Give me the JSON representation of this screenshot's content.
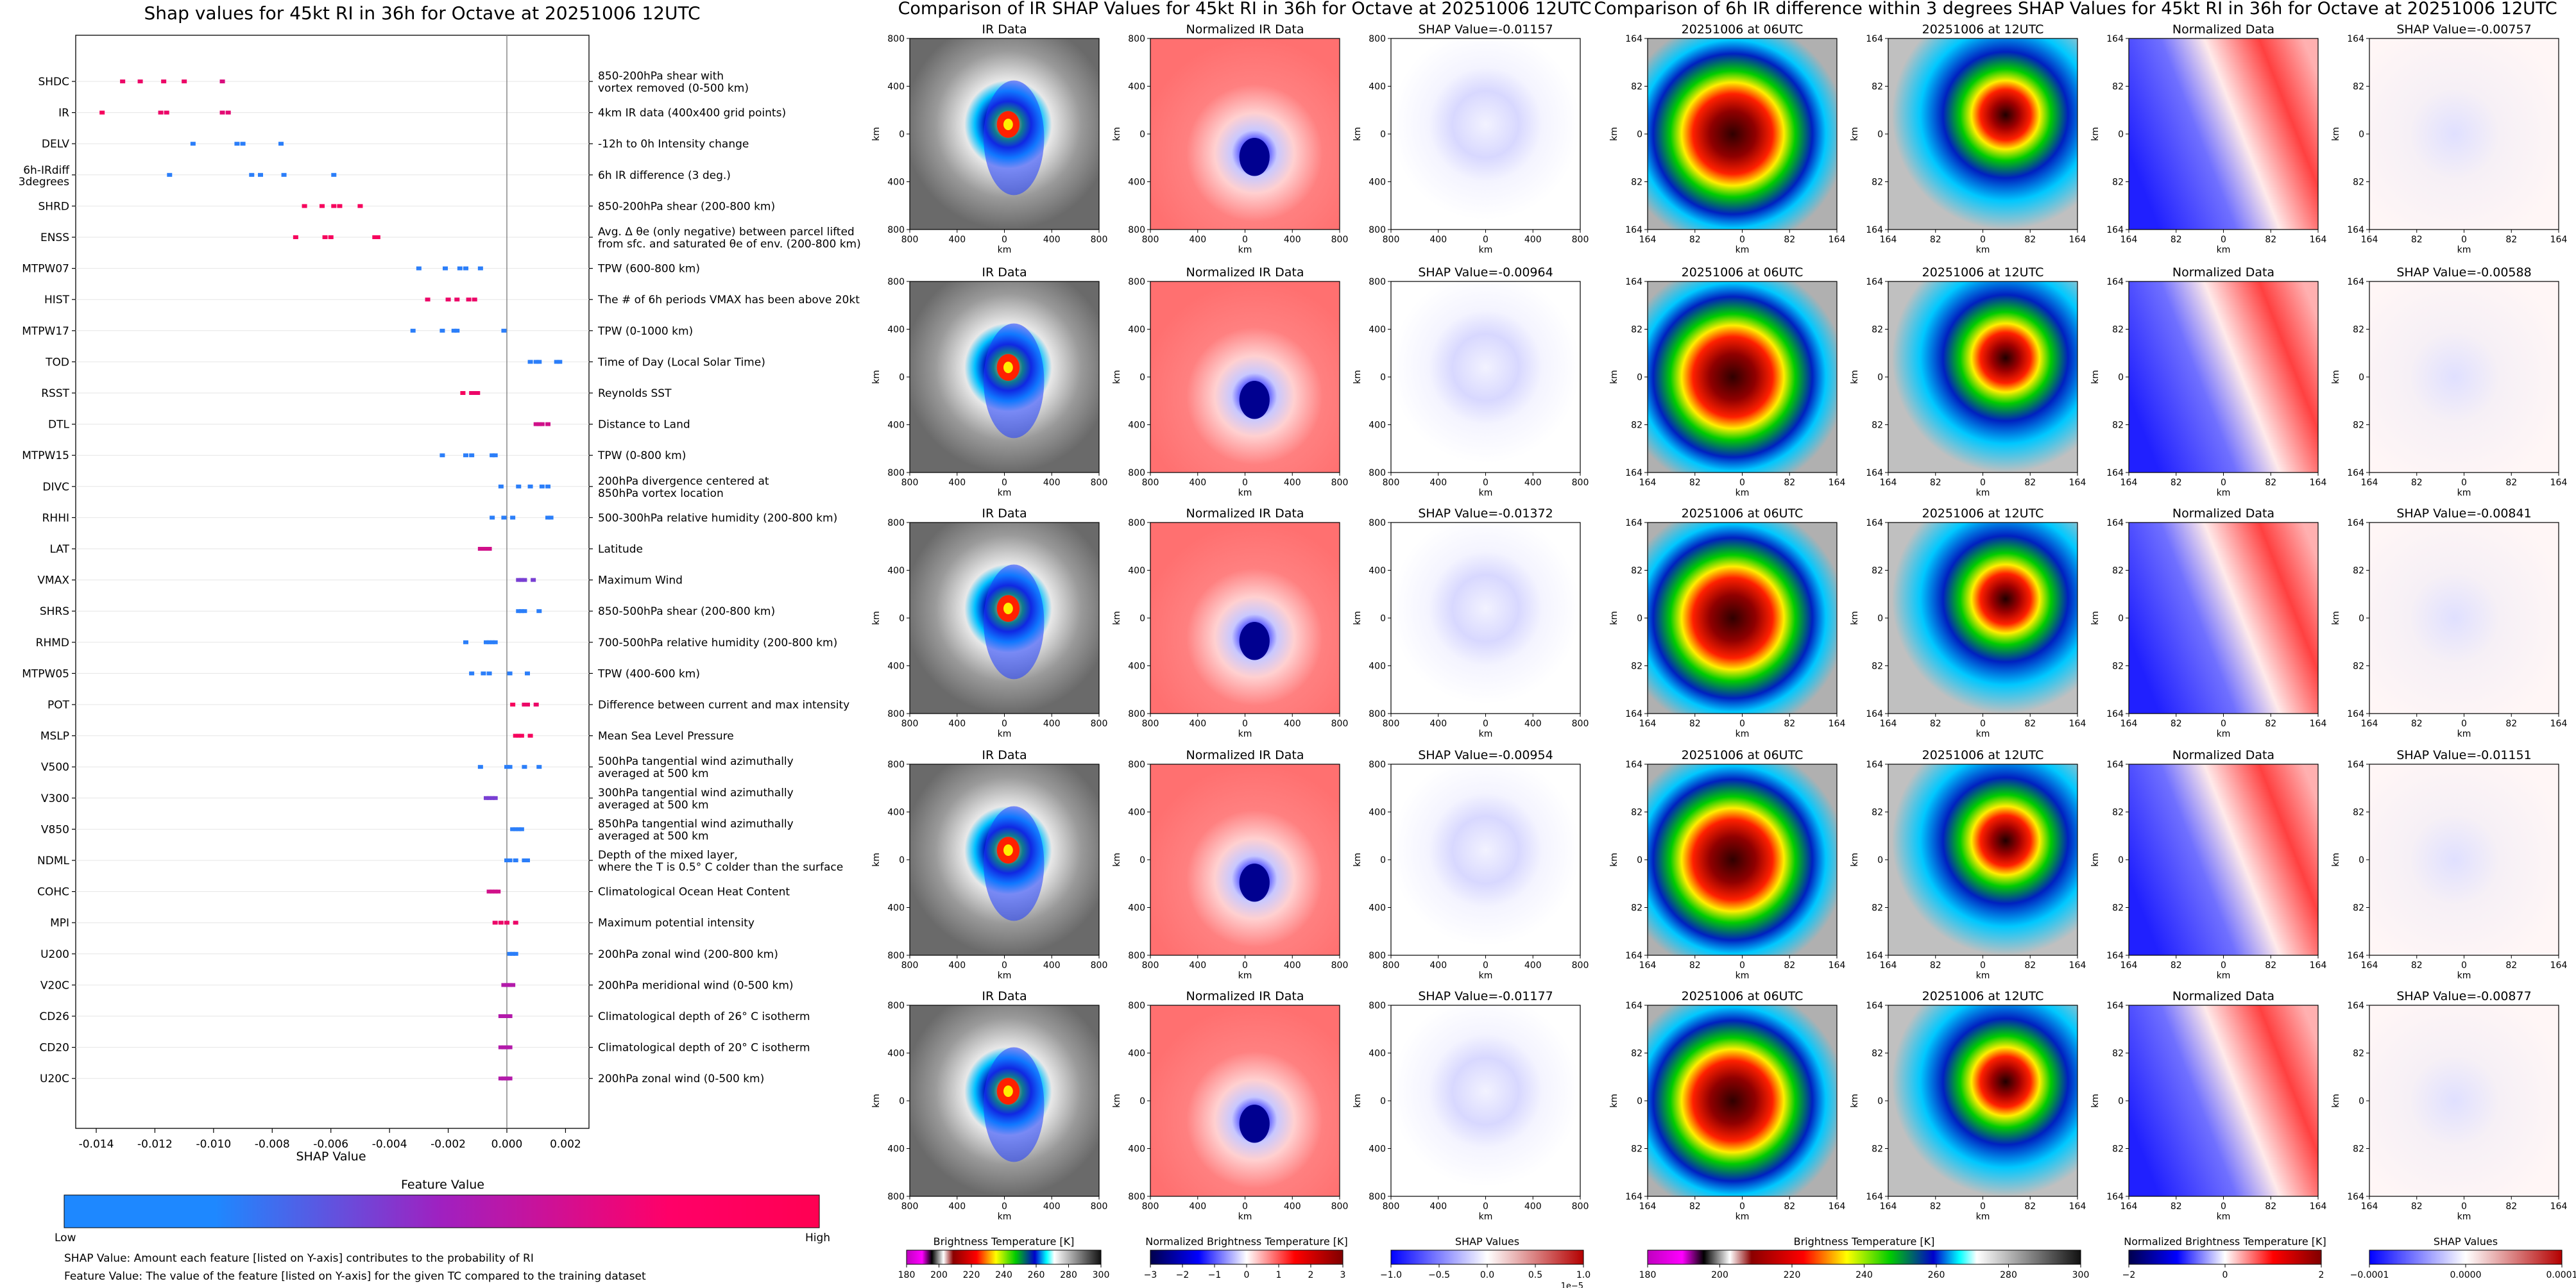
{
  "shap_summary": {
    "title": "Shap values for 45kt RI in 36h for Octave at 20251006 12UTC",
    "xlabel": "SHAP Value",
    "xticks": [
      "-0.014",
      "-0.012",
      "-0.010",
      "-0.008",
      "-0.006",
      "-0.004",
      "-0.002",
      "0.000",
      "0.002"
    ],
    "colorbar_label": "Feature Value",
    "colorbar_low": "Low",
    "colorbar_high": "High",
    "note_1": "SHAP Value: Amount each feature [listed on Y-axis] contributes to the probability of RI",
    "note_2": "Feature Value: The value of the feature [listed on Y-axis] for the given TC compared to the training dataset",
    "colors": {
      "low": "#1e88ff",
      "high": "#ff0052",
      "mid": "#a020c0"
    }
  },
  "chart_data": {
    "type": "scatter",
    "title": "Shap values for 45kt RI in 36h for Octave at 20251006 12UTC",
    "xlabel": "SHAP Value",
    "xlim": [
      -0.0147,
      0.0028
    ],
    "features": [
      {
        "name": "SHDC",
        "desc": [
          "850-200hPa shear with",
          "vortex removed (0-500 km)"
        ],
        "points": [
          [
            -0.0131,
            0.9
          ],
          [
            -0.0125,
            0.9
          ],
          [
            -0.0117,
            0.9
          ],
          [
            -0.011,
            0.9
          ],
          [
            -0.0097,
            0.8
          ]
        ]
      },
      {
        "name": "IR",
        "desc": [
          "4km IR data (400x400 grid points)"
        ],
        "points": [
          [
            -0.0138,
            0.95
          ],
          [
            -0.0118,
            0.9
          ],
          [
            -0.0116,
            0.9
          ],
          [
            -0.0097,
            0.85
          ],
          [
            -0.0095,
            0.85
          ]
        ]
      },
      {
        "name": "DELV",
        "desc": [
          "-12h to 0h Intensity change"
        ],
        "points": [
          [
            -0.0107,
            0.05
          ],
          [
            -0.0092,
            0.05
          ],
          [
            -0.009,
            0.05
          ],
          [
            -0.0077,
            0.05
          ]
        ]
      },
      {
        "name": "6h-IRdiff",
        "name2": "3degrees",
        "desc": [
          "6h IR difference (3 deg.)"
        ],
        "points": [
          [
            -0.0115,
            0.05
          ],
          [
            -0.0087,
            0.05
          ],
          [
            -0.0084,
            0.05
          ],
          [
            -0.0076,
            0.05
          ],
          [
            -0.0059,
            0.05
          ]
        ]
      },
      {
        "name": "SHRD",
        "desc": [
          "850-200hPa shear (200-800 km)"
        ],
        "points": [
          [
            -0.0069,
            0.95
          ],
          [
            -0.0063,
            0.95
          ],
          [
            -0.0059,
            0.95
          ],
          [
            -0.0057,
            0.95
          ],
          [
            -0.005,
            0.95
          ]
        ]
      },
      {
        "name": "ENSS",
        "desc": [
          "Avg. Δ θe (only negative) between parcel lifted",
          "from sfc. and saturated θe of env. (200-800 km)"
        ],
        "points": [
          [
            -0.0072,
            0.95
          ],
          [
            -0.0062,
            0.95
          ],
          [
            -0.006,
            0.95
          ],
          [
            -0.0045,
            0.95
          ],
          [
            -0.0044,
            0.95
          ]
        ]
      },
      {
        "name": "MTPW07",
        "desc": [
          "TPW (600-800 km)"
        ],
        "points": [
          [
            -0.003,
            0.05
          ],
          [
            -0.0021,
            0.05
          ],
          [
            -0.0016,
            0.05
          ],
          [
            -0.0014,
            0.05
          ],
          [
            -0.0009,
            0.05
          ]
        ]
      },
      {
        "name": "HIST",
        "desc": [
          "The # of 6h periods VMAX has been above 20kt"
        ],
        "points": [
          [
            -0.0027,
            0.9
          ],
          [
            -0.002,
            0.9
          ],
          [
            -0.0017,
            0.9
          ],
          [
            -0.0013,
            0.9
          ],
          [
            -0.0011,
            0.9
          ]
        ]
      },
      {
        "name": "MTPW17",
        "desc": [
          "TPW (0-1000 km)"
        ],
        "points": [
          [
            -0.0032,
            0.05
          ],
          [
            -0.0022,
            0.05
          ],
          [
            -0.0018,
            0.05
          ],
          [
            -0.0017,
            0.05
          ],
          [
            -0.0001,
            0.05
          ]
        ]
      },
      {
        "name": "TOD",
        "desc": [
          "Time of Day (Local Solar Time)"
        ],
        "points": [
          [
            0.0008,
            0.05
          ],
          [
            0.001,
            0.05
          ],
          [
            0.0011,
            0.05
          ],
          [
            0.0017,
            0.05
          ],
          [
            0.0018,
            0.05
          ]
        ]
      },
      {
        "name": "RSST",
        "desc": [
          "Reynolds SST"
        ],
        "points": [
          [
            -0.0015,
            0.95
          ],
          [
            -0.0012,
            0.9
          ],
          [
            -0.0011,
            0.9
          ],
          [
            -0.001,
            0.9
          ]
        ]
      },
      {
        "name": "DTL",
        "desc": [
          "Distance to Land"
        ],
        "points": [
          [
            0.001,
            0.75
          ],
          [
            0.0011,
            0.75
          ],
          [
            0.0012,
            0.75
          ],
          [
            0.0014,
            0.75
          ]
        ]
      },
      {
        "name": "MTPW15",
        "desc": [
          "TPW (0-800 km)"
        ],
        "points": [
          [
            -0.0022,
            0.05
          ],
          [
            -0.0014,
            0.05
          ],
          [
            -0.0012,
            0.05
          ],
          [
            -0.0005,
            0.05
          ],
          [
            -0.0004,
            0.05
          ]
        ]
      },
      {
        "name": "DIVC",
        "desc": [
          "200hPa divergence centered at",
          "850hPa vortex location"
        ],
        "points": [
          [
            -0.0002,
            0.05
          ],
          [
            0.0004,
            0.05
          ],
          [
            0.0008,
            0.05
          ],
          [
            0.0012,
            0.05
          ],
          [
            0.0014,
            0.05
          ]
        ]
      },
      {
        "name": "RHHI",
        "desc": [
          "500-300hPa relative humidity (200-800 km)"
        ],
        "points": [
          [
            -0.0005,
            0.05
          ],
          [
            -0.0001,
            0.05
          ],
          [
            0.0002,
            0.05
          ],
          [
            0.0014,
            0.05
          ],
          [
            0.0015,
            0.05
          ]
        ]
      },
      {
        "name": "LAT",
        "desc": [
          "Latitude"
        ],
        "points": [
          [
            -0.0009,
            0.75
          ],
          [
            -0.0008,
            0.75
          ],
          [
            -0.0007,
            0.75
          ],
          [
            -0.0006,
            0.75
          ]
        ]
      },
      {
        "name": "VMAX",
        "desc": [
          "Maximum Wind"
        ],
        "points": [
          [
            0.0004,
            0.35
          ],
          [
            0.0005,
            0.35
          ],
          [
            0.0006,
            0.35
          ],
          [
            0.0009,
            0.35
          ]
        ]
      },
      {
        "name": "SHRS",
        "desc": [
          "850-500hPa shear (200-800 km)"
        ],
        "points": [
          [
            0.0004,
            0.05
          ],
          [
            0.0005,
            0.05
          ],
          [
            0.0006,
            0.05
          ],
          [
            0.0011,
            0.05
          ]
        ]
      },
      {
        "name": "RHMD",
        "desc": [
          "700-500hPa relative humidity (200-800 km)"
        ],
        "points": [
          [
            -0.0014,
            0.05
          ],
          [
            -0.0007,
            0.05
          ],
          [
            -0.0006,
            0.05
          ],
          [
            -0.0005,
            0.05
          ],
          [
            -0.0004,
            0.05
          ]
        ]
      },
      {
        "name": "MTPW05",
        "desc": [
          "TPW (400-600 km)"
        ],
        "points": [
          [
            -0.0012,
            0.05
          ],
          [
            -0.0008,
            0.05
          ],
          [
            -0.0006,
            0.05
          ],
          [
            0.0001,
            0.05
          ],
          [
            0.0007,
            0.05
          ]
        ]
      },
      {
        "name": "POT",
        "desc": [
          "Difference between current and max intensity"
        ],
        "points": [
          [
            0.0002,
            0.95
          ],
          [
            0.0006,
            0.9
          ],
          [
            0.0007,
            0.9
          ],
          [
            0.001,
            0.9
          ]
        ]
      },
      {
        "name": "MSLP",
        "desc": [
          "Mean Sea Level Pressure"
        ],
        "points": [
          [
            0.0003,
            0.95
          ],
          [
            0.0004,
            0.95
          ],
          [
            0.0005,
            0.95
          ],
          [
            0.0008,
            0.95
          ]
        ]
      },
      {
        "name": "V500",
        "desc": [
          "500hPa tangential wind azimuthally",
          "averaged at 500 km"
        ],
        "points": [
          [
            -0.0009,
            0.05
          ],
          [
            0.0,
            0.05
          ],
          [
            0.0001,
            0.05
          ],
          [
            0.0006,
            0.05
          ],
          [
            0.0011,
            0.05
          ]
        ]
      },
      {
        "name": "V300",
        "desc": [
          "300hPa tangential wind azimuthally",
          "averaged at 500 km"
        ],
        "points": [
          [
            -0.0007,
            0.35
          ],
          [
            -0.0006,
            0.35
          ],
          [
            -0.0005,
            0.35
          ],
          [
            -0.0004,
            0.35
          ]
        ]
      },
      {
        "name": "V850",
        "desc": [
          "850hPa tangential wind azimuthally",
          "averaged at 500 km"
        ],
        "points": [
          [
            0.0002,
            0.05
          ],
          [
            0.0003,
            0.05
          ],
          [
            0.0004,
            0.05
          ],
          [
            0.0005,
            0.05
          ]
        ]
      },
      {
        "name": "NDML",
        "desc": [
          "Depth of the mixed layer,",
          "where the T is 0.5° C colder than the surface"
        ],
        "points": [
          [
            0.0,
            0.05
          ],
          [
            0.0001,
            0.05
          ],
          [
            0.0003,
            0.05
          ],
          [
            0.0006,
            0.05
          ],
          [
            0.0007,
            0.05
          ]
        ]
      },
      {
        "name": "COHC",
        "desc": [
          "Climatological Ocean Heat Content"
        ],
        "points": [
          [
            -0.0006,
            0.75
          ],
          [
            -0.0005,
            0.75
          ],
          [
            -0.0004,
            0.75
          ],
          [
            -0.0003,
            0.75
          ]
        ]
      },
      {
        "name": "MPI",
        "desc": [
          "Maximum potential intensity"
        ],
        "points": [
          [
            -0.0004,
            0.9
          ],
          [
            -0.0002,
            0.9
          ],
          [
            0.0,
            0.9
          ],
          [
            0.0003,
            0.9
          ]
        ]
      },
      {
        "name": "U200",
        "desc": [
          "200hPa zonal wind (200-800 km)"
        ],
        "points": [
          [
            0.0001,
            0.05
          ],
          [
            0.0002,
            0.05
          ],
          [
            0.0003,
            0.05
          ]
        ]
      },
      {
        "name": "V20C",
        "desc": [
          "200hPa meridional wind (0-500 km)"
        ],
        "points": [
          [
            -0.0001,
            0.6
          ],
          [
            0.0,
            0.6
          ],
          [
            0.0001,
            0.6
          ],
          [
            0.0002,
            0.6
          ]
        ]
      },
      {
        "name": "CD26",
        "desc": [
          "Climatological depth of 26° C isotherm"
        ],
        "points": [
          [
            -0.0002,
            0.6
          ],
          [
            -0.0001,
            0.6
          ],
          [
            0.0,
            0.6
          ],
          [
            0.0001,
            0.6
          ]
        ]
      },
      {
        "name": "CD20",
        "desc": [
          "Climatological depth of 20° C isotherm"
        ],
        "points": [
          [
            -0.0002,
            0.6
          ],
          [
            -0.0001,
            0.6
          ],
          [
            0.0,
            0.6
          ],
          [
            0.0001,
            0.6
          ]
        ]
      },
      {
        "name": "U20C",
        "desc": [
          "200hPa zonal wind (0-500 km)"
        ],
        "points": [
          [
            -0.0002,
            0.6
          ],
          [
            -0.0001,
            0.6
          ],
          [
            0.0,
            0.6
          ],
          [
            0.0001,
            0.6
          ]
        ]
      }
    ]
  },
  "ir_comparison": {
    "title": "Comparison of IR SHAP Values for 45kt RI in 36h for Octave at 20251006 12UTC",
    "col_titles": [
      "IR Data",
      "Normalized IR Data"
    ],
    "shap_titles": [
      "SHAP Value=-0.01157",
      "SHAP Value=-0.00964",
      "SHAP Value=-0.01372",
      "SHAP Value=-0.00954",
      "SHAP Value=-0.01177"
    ],
    "axis_label": "km",
    "yticks": [
      "800",
      "400",
      "0",
      "400",
      "800"
    ],
    "xticks": [
      "800",
      "400",
      "0",
      "400",
      "800"
    ],
    "cbar_labels": [
      "Brightness Temperature [K]",
      "Normalized Brightness Temperature [K]",
      "SHAP Values"
    ],
    "cbar1_ticks": [
      "180",
      "200",
      "220",
      "240",
      "260",
      "280",
      "300"
    ],
    "cbar2_ticks": [
      "−3",
      "−2",
      "−1",
      "0",
      "1",
      "2",
      "3"
    ],
    "cbar3_ticks": [
      "−1.0",
      "−0.5",
      "0.0",
      "0.5",
      "1.0"
    ],
    "cbar3_exp": "1e−5"
  },
  "diff_comparison": {
    "title": "Comparison of 6h IR difference within 3 degrees SHAP Values for 45kt RI in 36h for Octave at 20251006 12UTC",
    "col_titles": [
      "20251006 at 06UTC",
      "20251006 at 12UTC",
      "Normalized Data"
    ],
    "shap_titles": [
      "SHAP Value=-0.00757",
      "SHAP Value=-0.00588",
      "SHAP Value=-0.00841",
      "SHAP Value=-0.01151",
      "SHAP Value=-0.00877"
    ],
    "axis_label": "km",
    "yticks": [
      "164",
      "82",
      "0",
      "82",
      "164"
    ],
    "xticks": [
      "164",
      "82",
      "0",
      "82",
      "164"
    ],
    "cbar_labels": [
      "Brightness Temperature [K]",
      "Normalized Brightness Temperature [K]",
      "SHAP Values"
    ],
    "cbar1_ticks": [
      "180",
      "200",
      "220",
      "240",
      "260",
      "280",
      "300"
    ],
    "cbar2_ticks": [
      "−2",
      "0",
      "2"
    ],
    "cbar3_ticks": [
      "−0.0001",
      "0.0000",
      "0.0001"
    ]
  }
}
